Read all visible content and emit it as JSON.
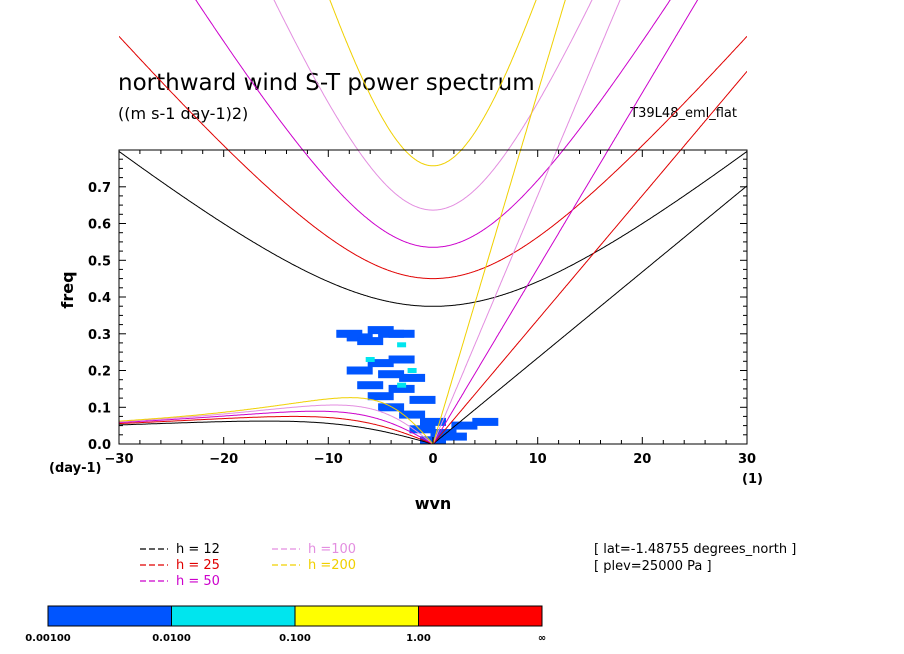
{
  "chart_data": {
    "type": "heatmap",
    "title": "northward wind S-T power spectrum",
    "subtitle": "((m s-1 day-1)2)",
    "run_label": "T39L48_eml_flat",
    "xlabel": "wvn",
    "ylabel": "freq",
    "x_unit": "(1)",
    "y_unit": "(day-1)",
    "xlim": [
      -30,
      30
    ],
    "ylim": [
      0.0,
      0.8
    ],
    "x_ticks": [
      -30,
      -20,
      -10,
      0,
      10,
      20,
      30
    ],
    "y_ticks": [
      0.0,
      0.1,
      0.2,
      0.3,
      0.4,
      0.5,
      0.6,
      0.7
    ],
    "x_tick_labels": [
      "−30",
      "−20",
      "−10",
      "0",
      "10",
      "20",
      "30"
    ],
    "y_tick_labels": [
      "0.0",
      "0.1",
      "0.2",
      "0.3",
      "0.4",
      "0.5",
      "0.6",
      "0.7"
    ],
    "dispersion_curves": [
      {
        "name": "h = 12",
        "h": 12,
        "color": "#000000"
      },
      {
        "name": "h = 25",
        "h": 25,
        "color": "#e00000"
      },
      {
        "name": "h = 50",
        "h": 50,
        "color": "#cc00cc"
      },
      {
        "name": "h =100",
        "h": 100,
        "color": "#e38ee0"
      },
      {
        "name": "h =200",
        "h": 200,
        "color": "#f0d000"
      }
    ],
    "power_patches": [
      {
        "k": -8,
        "f": 0.3,
        "level": 1
      },
      {
        "k": -7,
        "f": 0.29,
        "level": 1
      },
      {
        "k": -6,
        "f": 0.28,
        "level": 1
      },
      {
        "k": -5,
        "f": 0.31,
        "level": 1
      },
      {
        "k": -4,
        "f": 0.3,
        "level": 1
      },
      {
        "k": -3,
        "f": 0.3,
        "level": 1
      },
      {
        "k": -3,
        "f": 0.23,
        "level": 1
      },
      {
        "k": -5,
        "f": 0.22,
        "level": 1
      },
      {
        "k": -7,
        "f": 0.2,
        "level": 1
      },
      {
        "k": -4,
        "f": 0.19,
        "level": 1
      },
      {
        "k": -2,
        "f": 0.18,
        "level": 1
      },
      {
        "k": -6,
        "f": 0.16,
        "level": 1
      },
      {
        "k": -3,
        "f": 0.15,
        "level": 1
      },
      {
        "k": -5,
        "f": 0.13,
        "level": 1
      },
      {
        "k": -1,
        "f": 0.12,
        "level": 1
      },
      {
        "k": -4,
        "f": 0.1,
        "level": 1
      },
      {
        "k": -2,
        "f": 0.08,
        "level": 1
      },
      {
        "k": 0,
        "f": 0.06,
        "level": 1
      },
      {
        "k": -1,
        "f": 0.04,
        "level": 1
      },
      {
        "k": 1,
        "f": 0.03,
        "level": 1
      },
      {
        "k": 3,
        "f": 0.05,
        "level": 1
      },
      {
        "k": 5,
        "f": 0.06,
        "level": 1
      },
      {
        "k": 2,
        "f": 0.02,
        "level": 1
      },
      {
        "k": 0,
        "f": 0.01,
        "level": 1
      },
      {
        "k": -3,
        "f": 0.27,
        "level": 2
      },
      {
        "k": -6,
        "f": 0.23,
        "level": 2
      },
      {
        "k": -2,
        "f": 0.2,
        "level": 2
      },
      {
        "k": -3,
        "f": 0.16,
        "level": 2
      }
    ]
  },
  "legend": {
    "items": [
      {
        "label": "h = 12",
        "color": "#000000"
      },
      {
        "label": "h = 25",
        "color": "#e00000"
      },
      {
        "label": "h = 50",
        "color": "#cc00cc"
      },
      {
        "label": "h =100",
        "color": "#e38ee0"
      },
      {
        "label": "h =200",
        "color": "#f0d000"
      }
    ]
  },
  "info": {
    "lat": "[ lat=-1.48755 degrees_north ]",
    "plev": "[ plev=25000 Pa ]"
  },
  "colorbar": {
    "colors": [
      "#0055ff",
      "#00e5ee",
      "#ffff00",
      "#ff0000"
    ],
    "labels": [
      "0.00100",
      "0.0100",
      "0.100",
      "1.00",
      "∞"
    ]
  }
}
